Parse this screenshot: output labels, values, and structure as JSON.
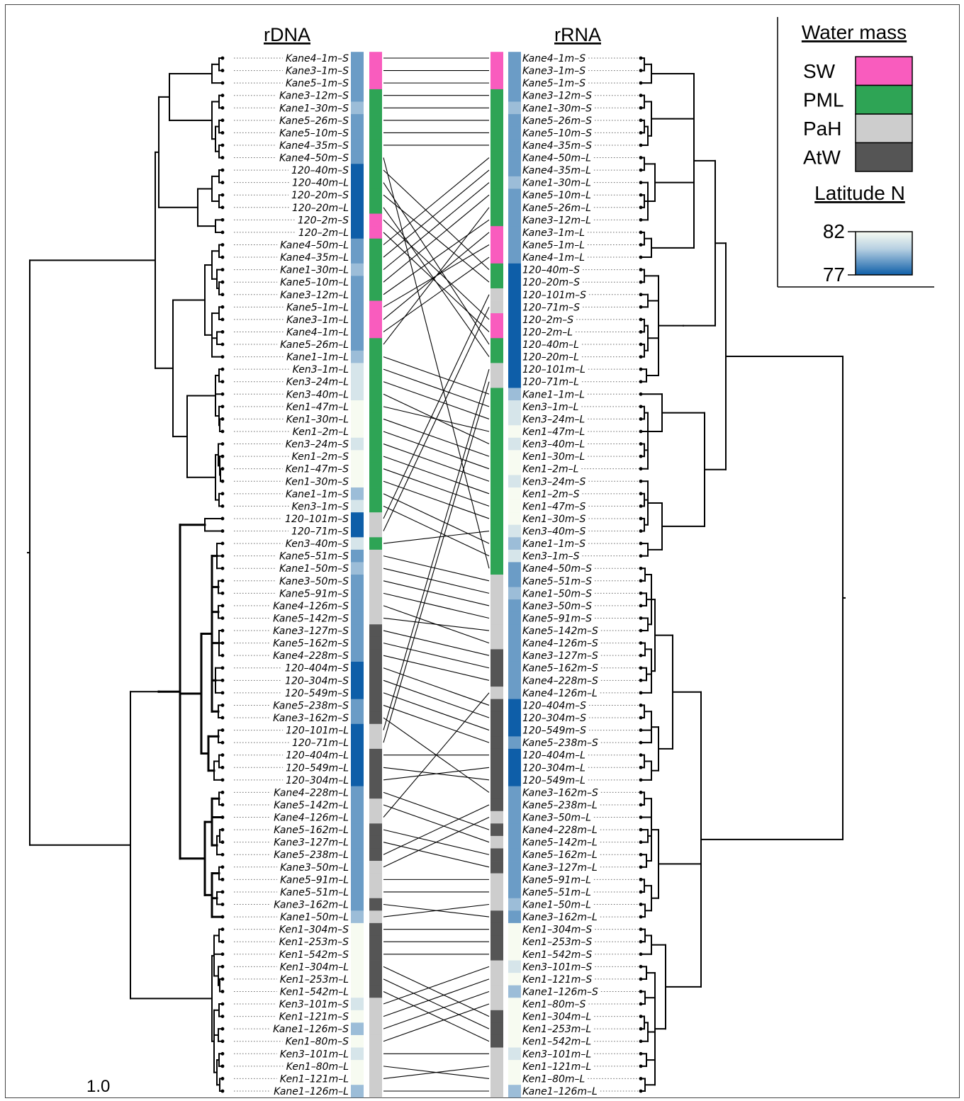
{
  "headers": {
    "left": "rDNA",
    "right": "rRNA"
  },
  "legend": {
    "water_title": "Water mass",
    "water_masses": [
      {
        "name": "SW",
        "color": "#f95cbe"
      },
      {
        "name": "PML",
        "color": "#2ea455"
      },
      {
        "name": "PaH",
        "color": "#cdcdcd"
      },
      {
        "name": "AtW",
        "color": "#555555"
      }
    ],
    "lat_title": "Latitude N",
    "lat_max": "82",
    "lat_min": "77",
    "lat_colors": [
      "#f7fbf1",
      "#d6e5ea",
      "#9cbdd8",
      "#6b9cc6",
      "#0e5ea8"
    ]
  },
  "scale_label": "1.0",
  "colors": {
    "SW": "#f95cbe",
    "PML": "#2ea455",
    "PaH": "#cdcdcd",
    "AtW": "#555555"
  },
  "lat_palette": [
    "#f7fbf1",
    "#d6e5ea",
    "#9cbdd8",
    "#6b9cc6",
    "#0e5ea8"
  ],
  "left_leaves": [
    [
      "Kane4–1m–S",
      3,
      "SW"
    ],
    [
      "Kane3–1m–S",
      3,
      "SW"
    ],
    [
      "Kane5–1m–S",
      3,
      "SW"
    ],
    [
      "Kane3–12m–S",
      3,
      "PML"
    ],
    [
      "Kane1–30m–S",
      2,
      "PML"
    ],
    [
      "Kane5–26m–S",
      3,
      "PML"
    ],
    [
      "Kane5–10m–S",
      3,
      "PML"
    ],
    [
      "Kane4–35m–S",
      3,
      "PML"
    ],
    [
      "Kane4–50m–S",
      3,
      "PML"
    ],
    [
      "120–40m–S",
      4,
      "PML"
    ],
    [
      "120–40m–L",
      4,
      "PML"
    ],
    [
      "120–20m–S",
      4,
      "PML"
    ],
    [
      "120–20m–L",
      4,
      "PML"
    ],
    [
      "120–2m–S",
      4,
      "SW"
    ],
    [
      "120–2m–L",
      4,
      "SW"
    ],
    [
      "Kane4–50m–L",
      3,
      "PML"
    ],
    [
      "Kane4–35m–L",
      3,
      "PML"
    ],
    [
      "Kane1–30m–L",
      2,
      "PML"
    ],
    [
      "Kane5–10m–L",
      3,
      "PML"
    ],
    [
      "Kane3–12m–L",
      3,
      "PML"
    ],
    [
      "Kane5–1m–L",
      3,
      "SW"
    ],
    [
      "Kane3–1m–L",
      3,
      "SW"
    ],
    [
      "Kane4–1m–L",
      3,
      "SW"
    ],
    [
      "Kane5–26m–L",
      3,
      "PML"
    ],
    [
      "Kane1–1m–L",
      2,
      "PML"
    ],
    [
      "Ken3–1m–L",
      1,
      "PML"
    ],
    [
      "Ken3–24m–L",
      1,
      "PML"
    ],
    [
      "Ken3–40m–L",
      1,
      "PML"
    ],
    [
      "Ken1–47m–L",
      0,
      "PML"
    ],
    [
      "Ken1–30m–L",
      0,
      "PML"
    ],
    [
      "Ken1–2m–L",
      0,
      "PML"
    ],
    [
      "Ken3–24m–S",
      1,
      "PML"
    ],
    [
      "Ken1–2m–S",
      0,
      "PML"
    ],
    [
      "Ken1–47m–S",
      0,
      "PML"
    ],
    [
      "Ken1–30m–S",
      0,
      "PML"
    ],
    [
      "Kane1–1m–S",
      2,
      "PML"
    ],
    [
      "Ken3–1m–S",
      1,
      "PML"
    ],
    [
      "120–101m–S",
      4,
      "PaH"
    ],
    [
      "120–71m–S",
      4,
      "PaH"
    ],
    [
      "Ken3–40m–S",
      1,
      "PML"
    ],
    [
      "Kane5–51m–S",
      3,
      "PaH"
    ],
    [
      "Kane1–50m–S",
      2,
      "PaH"
    ],
    [
      "Kane3–50m–S",
      3,
      "PaH"
    ],
    [
      "Kane5–91m–S",
      3,
      "PaH"
    ],
    [
      "Kane4–126m–S",
      3,
      "PaH"
    ],
    [
      "Kane5–142m–S",
      3,
      "PaH"
    ],
    [
      "Kane3–127m–S",
      3,
      "AtW"
    ],
    [
      "Kane5–162m–S",
      3,
      "AtW"
    ],
    [
      "Kane4–228m–S",
      3,
      "AtW"
    ],
    [
      "120–404m–S",
      4,
      "AtW"
    ],
    [
      "120–304m–S",
      4,
      "AtW"
    ],
    [
      "120–549m–S",
      4,
      "AtW"
    ],
    [
      "Kane5–238m–S",
      3,
      "AtW"
    ],
    [
      "Kane3–162m–S",
      3,
      "AtW"
    ],
    [
      "120–101m–L",
      4,
      "PaH"
    ],
    [
      "120–71m–L",
      4,
      "PaH"
    ],
    [
      "120–404m–L",
      4,
      "AtW"
    ],
    [
      "120–549m–L",
      4,
      "AtW"
    ],
    [
      "120–304m–L",
      4,
      "AtW"
    ],
    [
      "Kane4–228m–L",
      3,
      "AtW"
    ],
    [
      "Kane5–142m–L",
      3,
      "PaH"
    ],
    [
      "Kane4–126m–L",
      3,
      "PaH"
    ],
    [
      "Kane5–162m–L",
      3,
      "AtW"
    ],
    [
      "Kane3–127m–L",
      3,
      "AtW"
    ],
    [
      "Kane5–238m–L",
      3,
      "AtW"
    ],
    [
      "Kane3–50m–L",
      3,
      "PaH"
    ],
    [
      "Kane5–91m–L",
      3,
      "PaH"
    ],
    [
      "Kane5–51m–L",
      3,
      "PaH"
    ],
    [
      "Kane3–162m–L",
      3,
      "AtW"
    ],
    [
      "Kane1–50m–L",
      2,
      "PaH"
    ],
    [
      "Ken1–304m–S",
      0,
      "AtW"
    ],
    [
      "Ken1–253m–S",
      0,
      "AtW"
    ],
    [
      "Ken1–542m–S",
      0,
      "AtW"
    ],
    [
      "Ken1–304m–L",
      0,
      "AtW"
    ],
    [
      "Ken1–253m–L",
      0,
      "AtW"
    ],
    [
      "Ken1–542m–L",
      0,
      "AtW"
    ],
    [
      "Ken3–101m–S",
      1,
      "PaH"
    ],
    [
      "Ken1–121m–S",
      0,
      "PaH"
    ],
    [
      "Kane1–126m–S",
      2,
      "PaH"
    ],
    [
      "Ken1–80m–S",
      0,
      "PaH"
    ],
    [
      "Ken3–101m–L",
      1,
      "PaH"
    ],
    [
      "Ken1–80m–L",
      0,
      "PaH"
    ],
    [
      "Ken1–121m–L",
      0,
      "PaH"
    ],
    [
      "Kane1–126m–L",
      2,
      "PaH"
    ]
  ],
  "right_leaves": [
    [
      "Kane4–1m–S",
      3,
      "SW"
    ],
    [
      "Kane3–1m–S",
      3,
      "SW"
    ],
    [
      "Kane5–1m–S",
      3,
      "SW"
    ],
    [
      "Kane3–12m–S",
      3,
      "PML"
    ],
    [
      "Kane1–30m–S",
      2,
      "PML"
    ],
    [
      "Kane5–26m–S",
      3,
      "PML"
    ],
    [
      "Kane5–10m–S",
      3,
      "PML"
    ],
    [
      "Kane4–35m–S",
      3,
      "PML"
    ],
    [
      "Kane4–50m–L",
      3,
      "PML"
    ],
    [
      "Kane4–35m–L",
      3,
      "PML"
    ],
    [
      "Kane1–30m–L",
      2,
      "PML"
    ],
    [
      "Kane5–10m–L",
      3,
      "PML"
    ],
    [
      "Kane5–26m–L",
      3,
      "PML"
    ],
    [
      "Kane3–12m–L",
      3,
      "PML"
    ],
    [
      "Kane3–1m–L",
      3,
      "SW"
    ],
    [
      "Kane5–1m–L",
      3,
      "SW"
    ],
    [
      "Kane4–1m–L",
      3,
      "SW"
    ],
    [
      "120–40m–S",
      4,
      "PML"
    ],
    [
      "120–20m–S",
      4,
      "PML"
    ],
    [
      "120–101m–S",
      4,
      "PaH"
    ],
    [
      "120–71m–S",
      4,
      "PaH"
    ],
    [
      "120–2m–S",
      4,
      "SW"
    ],
    [
      "120–2m–L",
      4,
      "SW"
    ],
    [
      "120–40m–L",
      4,
      "PML"
    ],
    [
      "120–20m–L",
      4,
      "PML"
    ],
    [
      "120–101m–L",
      4,
      "PaH"
    ],
    [
      "120–71m–L",
      4,
      "PaH"
    ],
    [
      "Kane1–1m–L",
      2,
      "PML"
    ],
    [
      "Ken3–1m–L",
      1,
      "PML"
    ],
    [
      "Ken3–24m–L",
      1,
      "PML"
    ],
    [
      "Ken1–47m–L",
      0,
      "PML"
    ],
    [
      "Ken3–40m–L",
      1,
      "PML"
    ],
    [
      "Ken1–30m–L",
      0,
      "PML"
    ],
    [
      "Ken1–2m–L",
      0,
      "PML"
    ],
    [
      "Ken3–24m–S",
      1,
      "PML"
    ],
    [
      "Ken1–2m–S",
      0,
      "PML"
    ],
    [
      "Ken1–47m–S",
      0,
      "PML"
    ],
    [
      "Ken1–30m–S",
      0,
      "PML"
    ],
    [
      "Ken3–40m–S",
      1,
      "PML"
    ],
    [
      "Kane1–1m–S",
      2,
      "PML"
    ],
    [
      "Ken3–1m–S",
      1,
      "PML"
    ],
    [
      "Kane4–50m–S",
      3,
      "PML"
    ],
    [
      "Kane5–51m–S",
      3,
      "PaH"
    ],
    [
      "Kane1–50m–S",
      2,
      "PaH"
    ],
    [
      "Kane3–50m–S",
      3,
      "PaH"
    ],
    [
      "Kane5–91m–S",
      3,
      "PaH"
    ],
    [
      "Kane5–142m–S",
      3,
      "PaH"
    ],
    [
      "Kane4–126m–S",
      3,
      "PaH"
    ],
    [
      "Kane3–127m–S",
      3,
      "AtW"
    ],
    [
      "Kane5–162m–S",
      3,
      "AtW"
    ],
    [
      "Kane4–228m–S",
      3,
      "AtW"
    ],
    [
      "Kane4–126m–L",
      3,
      "PaH"
    ],
    [
      "120–404m–S",
      4,
      "AtW"
    ],
    [
      "120–304m–S",
      4,
      "AtW"
    ],
    [
      "120–549m–S",
      4,
      "AtW"
    ],
    [
      "Kane5–238m–S",
      3,
      "AtW"
    ],
    [
      "120–404m–L",
      4,
      "AtW"
    ],
    [
      "120–304m–L",
      4,
      "AtW"
    ],
    [
      "120–549m–L",
      4,
      "AtW"
    ],
    [
      "Kane3–162m–S",
      3,
      "AtW"
    ],
    [
      "Kane5–238m–L",
      3,
      "AtW"
    ],
    [
      "Kane3–50m–L",
      3,
      "PaH"
    ],
    [
      "Kane4–228m–L",
      3,
      "AtW"
    ],
    [
      "Kane5–142m–L",
      3,
      "PaH"
    ],
    [
      "Kane5–162m–L",
      3,
      "AtW"
    ],
    [
      "Kane3–127m–L",
      3,
      "AtW"
    ],
    [
      "Kane5–91m–L",
      3,
      "PaH"
    ],
    [
      "Kane5–51m–L",
      3,
      "PaH"
    ],
    [
      "Kane1–50m–L",
      2,
      "PaH"
    ],
    [
      "Kane3–162m–L",
      3,
      "AtW"
    ],
    [
      "Ken1–304m–S",
      0,
      "AtW"
    ],
    [
      "Ken1–253m–S",
      0,
      "AtW"
    ],
    [
      "Ken1–542m–S",
      0,
      "AtW"
    ],
    [
      "Ken3–101m–S",
      1,
      "PaH"
    ],
    [
      "Ken1–121m–S",
      0,
      "PaH"
    ],
    [
      "Kane1–126m–S",
      2,
      "PaH"
    ],
    [
      "Ken1–80m–S",
      0,
      "PaH"
    ],
    [
      "Ken1–304m–L",
      0,
      "AtW"
    ],
    [
      "Ken1–253m–L",
      0,
      "AtW"
    ],
    [
      "Ken1–542m–L",
      0,
      "AtW"
    ],
    [
      "Ken3–101m–L",
      1,
      "PaH"
    ],
    [
      "Ken1–121m–L",
      0,
      "PaH"
    ],
    [
      "Ken1–80m–L",
      0,
      "PaH"
    ],
    [
      "Kane1–126m–L",
      2,
      "PaH"
    ]
  ]
}
